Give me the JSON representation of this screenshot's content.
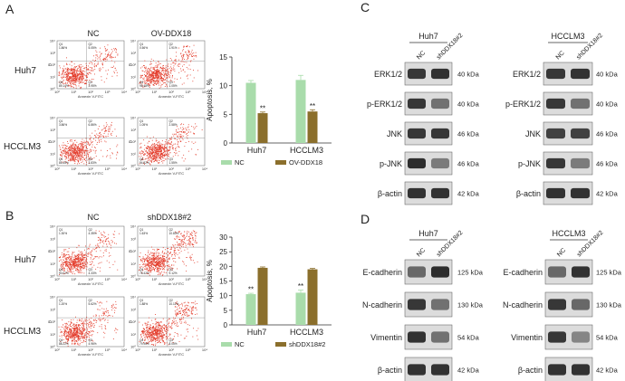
{
  "panels": {
    "A": {
      "label": "A",
      "col_headers": [
        "NC",
        "OV-DDX18"
      ],
      "row_labels": [
        "Huh7",
        "HCCLM3"
      ],
      "axis": {
        "x_label": "Annexin V-FITC",
        "y_label": "PI",
        "x_ticks": [
          "10⁰",
          "10¹",
          "10²",
          "10³",
          "10⁴"
        ],
        "y_ticks": [
          "10⁰",
          "10¹",
          "10²",
          "10³",
          "10⁴"
        ]
      },
      "plots": [
        {
          "q1": "Q1",
          "q1v": "1.86%",
          "q2": "Q2",
          "q2v": "5.05%",
          "q3": "Q3",
          "q3v": "3.95%",
          "q4": "Q4",
          "q4v": "89.14%"
        },
        {
          "q1": "Q1",
          "q1v": "0.56%",
          "q2": "Q2",
          "q2v": "1.91%",
          "q3": "Q3",
          "q3v": "1.05%",
          "q4": "Q4",
          "q4v": "96.48%"
        },
        {
          "q1": "Q1",
          "q1v": "3.86%",
          "q2": "Q2",
          "q2v": "6.86%",
          "q3": "Q3",
          "q3v": "3.83%",
          "q4": "Q4",
          "q4v": "85.45%"
        },
        {
          "q1": "Q1",
          "q1v": "1.05%",
          "q2": "Q2",
          "q2v": "2.58%",
          "q3": "Q3",
          "q3v": "1.55%",
          "q4": "Q4",
          "q4v": "94.82%"
        }
      ]
    },
    "B": {
      "label": "B",
      "col_headers": [
        "NC",
        "shDDX18#2"
      ],
      "row_labels": [
        "Huh7",
        "HCCLM3"
      ],
      "axis": {
        "x_label": "Annexin V-FITC",
        "y_label": "PI",
        "x_ticks": [
          "10⁰",
          "10¹",
          "10²",
          "10³",
          "10⁴"
        ],
        "y_ticks": [
          "10⁰",
          "10¹",
          "10²",
          "10³",
          "10⁴"
        ]
      },
      "plots": [
        {
          "q1": "Q1",
          "q1v": "1.30%",
          "q2": "Q2",
          "q2v": "4.35%",
          "q3": "Q3",
          "q3v": "4.33%",
          "q4": "Q4",
          "q4v": "90.02%"
        },
        {
          "q1": "Q1",
          "q1v": "1.63%",
          "q2": "Q2",
          "q2v": "10.83%",
          "q3": "Q3",
          "q3v": "9.12%",
          "q4": "Q4",
          "q4v": "78.42%"
        },
        {
          "q1": "Q1",
          "q1v": "1.20%",
          "q2": "Q2",
          "q2v": "5.62%",
          "q3": "Q3",
          "q3v": "4.96%",
          "q4": "Q4",
          "q4v": "88.22%"
        },
        {
          "q1": "Q1",
          "q1v": "1.88%",
          "q2": "Q2",
          "q2v": "10.11%",
          "q3": "Q3",
          "q3v": "8.05%",
          "q4": "Q4",
          "q4v": "79.96%"
        }
      ]
    },
    "C": {
      "label": "C",
      "blots": [
        {
          "cell": "Huh7",
          "lanes": [
            "NC",
            "shDDX18#2"
          ],
          "proteins": [
            {
              "name": "ERK1/2",
              "kda": "40 kDa",
              "lane_int": [
                0.85,
                0.88
              ]
            },
            {
              "name": "p-ERK1/2",
              "kda": "40 kDa",
              "lane_int": [
                0.85,
                0.55
              ]
            },
            {
              "name": "JNK",
              "kda": "46 kDa",
              "lane_int": [
                0.85,
                0.85
              ]
            },
            {
              "name": "p-JNK",
              "kda": "46 kDa",
              "lane_int": [
                0.9,
                0.5
              ]
            },
            {
              "name": "β-actin",
              "kda": "42 kDa",
              "lane_int": [
                0.88,
                0.88
              ]
            }
          ]
        },
        {
          "cell": "HCCLM3",
          "lanes": [
            "NC",
            "shDDX18#2"
          ],
          "proteins": [
            {
              "name": "ERK1/2",
              "kda": "40 kDa",
              "lane_int": [
                0.85,
                0.88
              ]
            },
            {
              "name": "p-ERK1/2",
              "kda": "40 kDa",
              "lane_int": [
                0.85,
                0.55
              ]
            },
            {
              "name": "JNK",
              "kda": "46 kDa",
              "lane_int": [
                0.8,
                0.8
              ]
            },
            {
              "name": "p-JNK",
              "kda": "46 kDa",
              "lane_int": [
                0.85,
                0.5
              ]
            },
            {
              "name": "β-actin",
              "kda": "42 kDa",
              "lane_int": [
                0.88,
                0.88
              ]
            }
          ]
        }
      ]
    },
    "D": {
      "label": "D",
      "blots": [
        {
          "cell": "Huh7",
          "lanes": [
            "NC",
            "shDDX18#2"
          ],
          "proteins": [
            {
              "name": "E-cadherin",
              "kda": "125 kDa",
              "lane_int": [
                0.6,
                0.9
              ]
            },
            {
              "name": "N-cadherin",
              "kda": "130 kDa",
              "lane_int": [
                0.85,
                0.55
              ]
            },
            {
              "name": "Vimentin",
              "kda": "54 kDa",
              "lane_int": [
                0.88,
                0.55
              ]
            },
            {
              "name": "β-actin",
              "kda": "42 kDa",
              "lane_int": [
                0.88,
                0.88
              ]
            }
          ]
        },
        {
          "cell": "HCCLM3",
          "lanes": [
            "NC",
            "shDDX18#2"
          ],
          "proteins": [
            {
              "name": "E-cadherin",
              "kda": "125 kDa",
              "lane_int": [
                0.6,
                0.88
              ]
            },
            {
              "name": "N-cadherin",
              "kda": "130 kDa",
              "lane_int": [
                0.85,
                0.6
              ]
            },
            {
              "name": "Vimentin",
              "kda": "54 kDa",
              "lane_int": [
                0.85,
                0.45
              ]
            },
            {
              "name": "β-actin",
              "kda": "42 kDa",
              "lane_int": [
                0.88,
                0.88
              ]
            }
          ]
        }
      ]
    }
  },
  "colors": {
    "nc": "#a9dcab",
    "treat": "#8b6f2c",
    "dot": "#e33b2a",
    "blot_bg": "#dcdcdc",
    "band": "#1a1a1a"
  },
  "chart_data": [
    {
      "type": "bar",
      "title": "",
      "categories": [
        "Huh7",
        "HCCLM3"
      ],
      "series": [
        {
          "name": "NC",
          "values": [
            10.5,
            11.0
          ],
          "errors": [
            0.4,
            0.8
          ],
          "sig": [
            "",
            ""
          ]
        },
        {
          "name": "OV-DDX18",
          "values": [
            5.2,
            5.5
          ],
          "errors": [
            0.2,
            0.3
          ],
          "sig": [
            "**",
            "**"
          ]
        }
      ],
      "xlabel": "",
      "ylabel": "Apoptosis, %",
      "ylim": [
        0,
        15
      ],
      "yticks": [
        0,
        5,
        10,
        15
      ],
      "legend": "bottom"
    },
    {
      "type": "bar",
      "title": "",
      "categories": [
        "Huh7",
        "HCCLM3"
      ],
      "series": [
        {
          "name": "NC",
          "values": [
            10.5,
            11.0
          ],
          "errors": [
            0.3,
            0.9
          ],
          "sig": [
            "**",
            "**"
          ]
        },
        {
          "name": "shDDX18#2",
          "values": [
            19.5,
            19.0
          ],
          "errors": [
            0.3,
            0.3
          ],
          "sig": [
            "",
            ""
          ]
        }
      ],
      "xlabel": "",
      "ylabel": "Apoptosis, %",
      "ylim": [
        0,
        30
      ],
      "yticks": [
        0,
        5,
        10,
        15,
        20,
        25,
        30
      ],
      "legend": "bottom"
    }
  ]
}
